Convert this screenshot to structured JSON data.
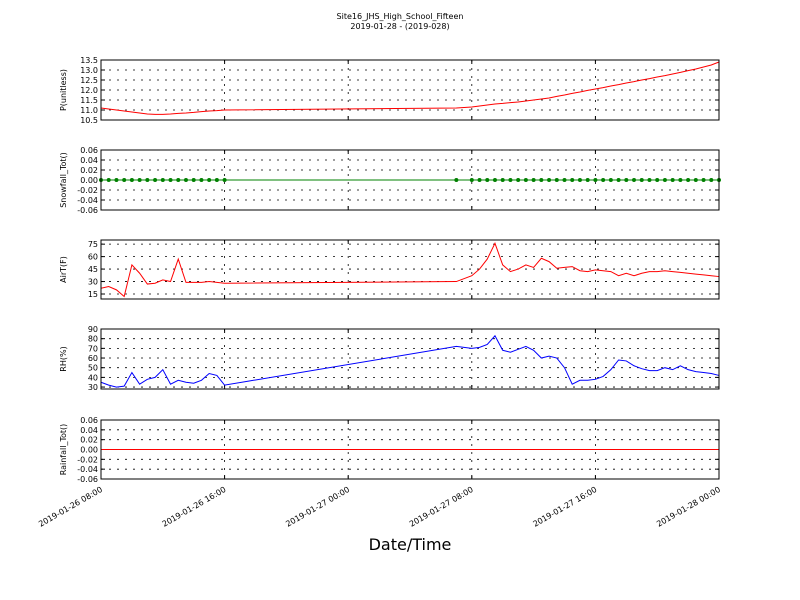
{
  "chart_data": [
    {
      "type": "line",
      "title": "Site16_JHS_High_School_Fifteen",
      "subtitle": "2019-01-28 - (2019-028)",
      "ylabel": "P(unitless)",
      "x": [
        "2019-01-26 08:00",
        "2019-01-26 08:30",
        "2019-01-26 09:00",
        "2019-01-26 09:30",
        "2019-01-26 10:00",
        "2019-01-26 10:30",
        "2019-01-26 11:00",
        "2019-01-26 11:30",
        "2019-01-26 12:00",
        "2019-01-26 12:30",
        "2019-01-26 13:00",
        "2019-01-26 13:30",
        "2019-01-26 14:00",
        "2019-01-26 14:30",
        "2019-01-26 15:00",
        "2019-01-26 15:30",
        "2019-01-26 16:00",
        "2019-01-27 07:00",
        "2019-01-27 08:00",
        "2019-01-27 08:30",
        "2019-01-27 09:00",
        "2019-01-27 09:30",
        "2019-01-27 10:00",
        "2019-01-27 10:30",
        "2019-01-27 11:00",
        "2019-01-27 11:30",
        "2019-01-27 12:00",
        "2019-01-27 12:30",
        "2019-01-27 13:00",
        "2019-01-27 13:30",
        "2019-01-27 14:00",
        "2019-01-27 14:30",
        "2019-01-27 15:00",
        "2019-01-27 15:30",
        "2019-01-27 16:00",
        "2019-01-27 16:30",
        "2019-01-27 17:00",
        "2019-01-27 17:30",
        "2019-01-27 18:00",
        "2019-01-27 18:30",
        "2019-01-27 19:00",
        "2019-01-27 19:30",
        "2019-01-27 20:00",
        "2019-01-27 20:30",
        "2019-01-27 21:00",
        "2019-01-27 21:30",
        "2019-01-27 22:00",
        "2019-01-27 22:30",
        "2019-01-27 23:00",
        "2019-01-27 23:30",
        "2019-01-28 00:00"
      ],
      "values": [
        11.1,
        11.05,
        11.0,
        10.95,
        10.9,
        10.85,
        10.8,
        10.78,
        10.78,
        10.8,
        10.83,
        10.85,
        10.88,
        10.92,
        10.95,
        10.97,
        11.0,
        11.1,
        11.15,
        11.2,
        11.25,
        11.3,
        11.33,
        11.37,
        11.4,
        11.45,
        11.5,
        11.55,
        11.6,
        11.68,
        11.75,
        11.83,
        11.9,
        11.98,
        12.05,
        12.12,
        12.2,
        12.27,
        12.35,
        12.42,
        12.5,
        12.57,
        12.65,
        12.72,
        12.8,
        12.88,
        12.97,
        13.05,
        13.15,
        13.25,
        13.4
      ],
      "color": "#ff0000",
      "marker": false,
      "xlim": [
        "2019-01-26 08:00",
        "2019-01-28 00:00"
      ],
      "xticks": [
        "2019-01-26 08:00",
        "2019-01-26 16:00",
        "2019-01-27 00:00",
        "2019-01-27 08:00",
        "2019-01-27 16:00",
        "2019-01-28 00:00"
      ],
      "ylim": [
        10.5,
        13.5
      ],
      "yticks": [
        10.5,
        {
          "value": 11,
          "label": "11.0"
        },
        11.5,
        {
          "value": 12,
          "label": "12.0"
        },
        12.5,
        {
          "value": 13,
          "label": "13.0"
        },
        13.5
      ],
      "grid": true
    },
    {
      "type": "line",
      "ylabel": "Snowfall_Tot()",
      "x": [
        "2019-01-26 08:00",
        "2019-01-26 08:30",
        "2019-01-26 09:00",
        "2019-01-26 09:30",
        "2019-01-26 10:00",
        "2019-01-26 10:30",
        "2019-01-26 11:00",
        "2019-01-26 11:30",
        "2019-01-26 12:00",
        "2019-01-26 12:30",
        "2019-01-26 13:00",
        "2019-01-26 13:30",
        "2019-01-26 14:00",
        "2019-01-26 14:30",
        "2019-01-26 15:00",
        "2019-01-26 15:30",
        "2019-01-26 16:00",
        "2019-01-27 07:00",
        "2019-01-27 08:00",
        "2019-01-27 08:30",
        "2019-01-27 09:00",
        "2019-01-27 09:30",
        "2019-01-27 10:00",
        "2019-01-27 10:30",
        "2019-01-27 11:00",
        "2019-01-27 11:30",
        "2019-01-27 12:00",
        "2019-01-27 12:30",
        "2019-01-27 13:00",
        "2019-01-27 13:30",
        "2019-01-27 14:00",
        "2019-01-27 14:30",
        "2019-01-27 15:00",
        "2019-01-27 15:30",
        "2019-01-27 16:00",
        "2019-01-27 16:30",
        "2019-01-27 17:00",
        "2019-01-27 17:30",
        "2019-01-27 18:00",
        "2019-01-27 18:30",
        "2019-01-27 19:00",
        "2019-01-27 19:30",
        "2019-01-27 20:00",
        "2019-01-27 20:30",
        "2019-01-27 21:00",
        "2019-01-27 21:30",
        "2019-01-27 22:00",
        "2019-01-27 22:30",
        "2019-01-27 23:00",
        "2019-01-27 23:30",
        "2019-01-28 00:00"
      ],
      "values": [
        0,
        0,
        0,
        0,
        0,
        0,
        0,
        0,
        0,
        0,
        0,
        0,
        0,
        0,
        0,
        0,
        0,
        0,
        0,
        0,
        0,
        0,
        0,
        0,
        0,
        0,
        0,
        0,
        0,
        0,
        0,
        0,
        0,
        0,
        0,
        0,
        0,
        0,
        0,
        0,
        0,
        0,
        0,
        0,
        0,
        0,
        0,
        0,
        0,
        0,
        0
      ],
      "color": "#008000",
      "marker": true,
      "xlim": [
        "2019-01-26 08:00",
        "2019-01-28 00:00"
      ],
      "xticks": [
        "2019-01-26 08:00",
        "2019-01-26 16:00",
        "2019-01-27 00:00",
        "2019-01-27 08:00",
        "2019-01-27 16:00",
        "2019-01-28 00:00"
      ],
      "ylim": [
        -0.06,
        0.06
      ],
      "yticks": [
        -0.06,
        -0.04,
        -0.02,
        {
          "value": 0,
          "label": "0.00"
        },
        0.02,
        0.04,
        0.06
      ],
      "grid": true
    },
    {
      "type": "line",
      "ylabel": "AirT(F)",
      "x": [
        "2019-01-26 08:00",
        "2019-01-26 08:30",
        "2019-01-26 09:00",
        "2019-01-26 09:30",
        "2019-01-26 10:00",
        "2019-01-26 10:30",
        "2019-01-26 11:00",
        "2019-01-26 11:30",
        "2019-01-26 12:00",
        "2019-01-26 12:30",
        "2019-01-26 13:00",
        "2019-01-26 13:30",
        "2019-01-26 14:00",
        "2019-01-26 14:30",
        "2019-01-26 15:00",
        "2019-01-26 15:30",
        "2019-01-26 16:00",
        "2019-01-27 07:00",
        "2019-01-27 08:00",
        "2019-01-27 08:30",
        "2019-01-27 09:00",
        "2019-01-27 09:30",
        "2019-01-27 10:00",
        "2019-01-27 10:30",
        "2019-01-27 11:00",
        "2019-01-27 11:30",
        "2019-01-27 12:00",
        "2019-01-27 12:30",
        "2019-01-27 13:00",
        "2019-01-27 13:30",
        "2019-01-27 14:00",
        "2019-01-27 14:30",
        "2019-01-27 15:00",
        "2019-01-27 15:30",
        "2019-01-27 16:00",
        "2019-01-27 16:30",
        "2019-01-27 17:00",
        "2019-01-27 17:30",
        "2019-01-27 18:00",
        "2019-01-27 18:30",
        "2019-01-27 19:00",
        "2019-01-27 19:30",
        "2019-01-27 20:00",
        "2019-01-27 20:30",
        "2019-01-27 21:00",
        "2019-01-27 21:30",
        "2019-01-27 22:00",
        "2019-01-27 22:30",
        "2019-01-27 23:00",
        "2019-01-27 23:30",
        "2019-01-28 00:00"
      ],
      "values": [
        22,
        24,
        20,
        12,
        50,
        40,
        27,
        28,
        32,
        30,
        57,
        29,
        29,
        29,
        30,
        29,
        28,
        30,
        37,
        45,
        57,
        76,
        50,
        42,
        45,
        50,
        47,
        58,
        54,
        46,
        47,
        48,
        43,
        42,
        44,
        43,
        42,
        37,
        40,
        37,
        40,
        42,
        42,
        43,
        42,
        41,
        40,
        39,
        38,
        37,
        36
      ],
      "color": "#ff0000",
      "marker": false,
      "xlim": [
        "2019-01-26 08:00",
        "2019-01-28 00:00"
      ],
      "xticks": [
        "2019-01-26 08:00",
        "2019-01-26 16:00",
        "2019-01-27 00:00",
        "2019-01-27 08:00",
        "2019-01-27 16:00",
        "2019-01-28 00:00"
      ],
      "ylim": [
        9,
        80
      ],
      "yticks": [
        15,
        30,
        45,
        60,
        75
      ],
      "grid": true
    },
    {
      "type": "line",
      "ylabel": "RH(%)",
      "x": [
        "2019-01-26 08:00",
        "2019-01-26 08:30",
        "2019-01-26 09:00",
        "2019-01-26 09:30",
        "2019-01-26 10:00",
        "2019-01-26 10:30",
        "2019-01-26 11:00",
        "2019-01-26 11:30",
        "2019-01-26 12:00",
        "2019-01-26 12:30",
        "2019-01-26 13:00",
        "2019-01-26 13:30",
        "2019-01-26 14:00",
        "2019-01-26 14:30",
        "2019-01-26 15:00",
        "2019-01-26 15:30",
        "2019-01-26 16:00",
        "2019-01-27 07:00",
        "2019-01-27 08:00",
        "2019-01-27 08:30",
        "2019-01-27 09:00",
        "2019-01-27 09:30",
        "2019-01-27 10:00",
        "2019-01-27 10:30",
        "2019-01-27 11:00",
        "2019-01-27 11:30",
        "2019-01-27 12:00",
        "2019-01-27 12:30",
        "2019-01-27 13:00",
        "2019-01-27 13:30",
        "2019-01-27 14:00",
        "2019-01-27 14:30",
        "2019-01-27 15:00",
        "2019-01-27 15:30",
        "2019-01-27 16:00",
        "2019-01-27 16:30",
        "2019-01-27 17:00",
        "2019-01-27 17:30",
        "2019-01-27 18:00",
        "2019-01-27 18:30",
        "2019-01-27 19:00",
        "2019-01-27 19:30",
        "2019-01-27 20:00",
        "2019-01-27 20:30",
        "2019-01-27 21:00",
        "2019-01-27 21:30",
        "2019-01-27 22:00",
        "2019-01-27 22:30",
        "2019-01-27 23:00",
        "2019-01-27 23:30",
        "2019-01-28 00:00"
      ],
      "values": [
        35,
        32,
        30,
        31,
        45,
        33,
        38,
        40,
        48,
        33,
        37,
        35,
        34,
        37,
        44,
        42,
        32,
        72,
        70,
        71,
        74,
        83,
        68,
        66,
        69,
        72,
        68,
        60,
        62,
        60,
        50,
        33,
        37,
        37,
        38,
        41,
        48,
        58,
        57,
        52,
        49,
        47,
        47,
        50,
        48,
        52,
        48,
        46,
        45,
        44,
        42
      ],
      "color": "#0000ff",
      "marker": false,
      "xlim": [
        "2019-01-26 08:00",
        "2019-01-28 00:00"
      ],
      "xticks": [
        "2019-01-26 08:00",
        "2019-01-26 16:00",
        "2019-01-27 00:00",
        "2019-01-27 08:00",
        "2019-01-27 16:00",
        "2019-01-28 00:00"
      ],
      "ylim": [
        28,
        90
      ],
      "yticks": [
        30,
        40,
        50,
        60,
        70,
        80,
        90
      ],
      "grid": true
    },
    {
      "type": "line",
      "ylabel": "Rainfall_Tot()",
      "xlabel": "Date/Time",
      "x": [
        "2019-01-26 08:00",
        "2019-01-26 08:30",
        "2019-01-26 09:00",
        "2019-01-26 09:30",
        "2019-01-26 10:00",
        "2019-01-26 10:30",
        "2019-01-26 11:00",
        "2019-01-26 11:30",
        "2019-01-26 12:00",
        "2019-01-26 12:30",
        "2019-01-26 13:00",
        "2019-01-26 13:30",
        "2019-01-26 14:00",
        "2019-01-26 14:30",
        "2019-01-26 15:00",
        "2019-01-26 15:30",
        "2019-01-26 16:00",
        "2019-01-27 07:00",
        "2019-01-27 08:00",
        "2019-01-27 08:30",
        "2019-01-27 09:00",
        "2019-01-27 09:30",
        "2019-01-27 10:00",
        "2019-01-27 10:30",
        "2019-01-27 11:00",
        "2019-01-27 11:30",
        "2019-01-27 12:00",
        "2019-01-27 12:30",
        "2019-01-27 13:00",
        "2019-01-27 13:30",
        "2019-01-27 14:00",
        "2019-01-27 14:30",
        "2019-01-27 15:00",
        "2019-01-27 15:30",
        "2019-01-27 16:00",
        "2019-01-27 16:30",
        "2019-01-27 17:00",
        "2019-01-27 17:30",
        "2019-01-27 18:00",
        "2019-01-27 18:30",
        "2019-01-27 19:00",
        "2019-01-27 19:30",
        "2019-01-27 20:00",
        "2019-01-27 20:30",
        "2019-01-27 21:00",
        "2019-01-27 21:30",
        "2019-01-27 22:00",
        "2019-01-27 22:30",
        "2019-01-27 23:00",
        "2019-01-27 23:30",
        "2019-01-28 00:00"
      ],
      "values": [
        0,
        0,
        0,
        0,
        0,
        0,
        0,
        0,
        0,
        0,
        0,
        0,
        0,
        0,
        0,
        0,
        0,
        0,
        0,
        0,
        0,
        0,
        0,
        0,
        0,
        0,
        0,
        0,
        0,
        0,
        0,
        0,
        0,
        0,
        0,
        0,
        0,
        0,
        0,
        0,
        0,
        0,
        0,
        0,
        0,
        0,
        0,
        0,
        0,
        0,
        0
      ],
      "color": "#ff0000",
      "marker": false,
      "xlim": [
        "2019-01-26 08:00",
        "2019-01-28 00:00"
      ],
      "xticks": [
        "2019-01-26 08:00",
        "2019-01-26 16:00",
        "2019-01-27 00:00",
        "2019-01-27 08:00",
        "2019-01-27 16:00",
        "2019-01-28 00:00"
      ],
      "ylim": [
        -0.06,
        0.06
      ],
      "yticks": [
        -0.06,
        -0.04,
        -0.02,
        {
          "value": 0,
          "label": "0.00"
        },
        0.02,
        0.04,
        0.06
      ],
      "grid": true
    }
  ]
}
